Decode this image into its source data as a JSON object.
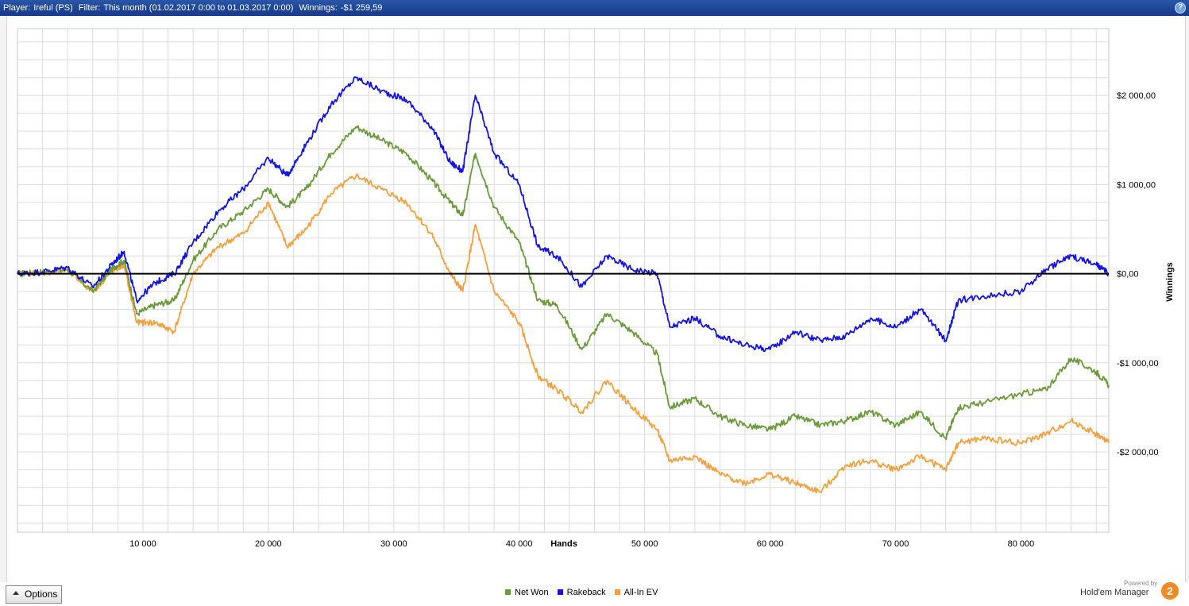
{
  "header": {
    "player_label": "Player:",
    "player_value": "Ireful (PS)",
    "filter_label": "Filter:",
    "filter_value": "This month (01.02.2017 0:00 to 01.03.2017 0:00)",
    "winnings_label": "Winnings:",
    "winnings_value": "-$1 259,59",
    "help_icon": "?"
  },
  "toolbar": {
    "options_label": "Options",
    "options_icon": "triangle-up-icon"
  },
  "brand": {
    "powered_by": "Powered by",
    "name": "Hold'em Manager",
    "logo_text": "2"
  },
  "colors": {
    "net_won": "#6a9a3a",
    "rakeback": "#1414e0",
    "all_in_ev": "#f5a040",
    "zero_line": "#000000",
    "grid": "#dcdcdc",
    "title_bar": "#1f4596"
  },
  "chart_data": {
    "type": "line",
    "xlabel": "Hands",
    "ylabel": "Winnings",
    "xlim": [
      0,
      87000
    ],
    "ylim": [
      -2900,
      2750
    ],
    "x_ticks": [
      10000,
      20000,
      30000,
      40000,
      50000,
      60000,
      70000,
      80000
    ],
    "x_tick_labels": [
      "10 000",
      "20 000",
      "30 000",
      "40 000",
      "50 000",
      "60 000",
      "70 000",
      "80 000"
    ],
    "y_ticks": [
      2000,
      1000,
      0,
      -1000,
      -2000
    ],
    "y_tick_labels": [
      "$2 000,00",
      "$1 000,00",
      "$0,00",
      "-$1 000,00",
      "-$2 000,00"
    ],
    "grid": true,
    "legend_position": "bottom-center",
    "x": [
      0,
      2000,
      4000,
      6000,
      7500,
      8500,
      9500,
      11000,
      12500,
      14000,
      16000,
      18000,
      20000,
      21500,
      23000,
      25000,
      27000,
      29000,
      31000,
      33000,
      34500,
      35500,
      36500,
      38000,
      40000,
      41500,
      43000,
      45000,
      47000,
      49000,
      51000,
      52000,
      54000,
      56000,
      58000,
      60000,
      62000,
      64000,
      66000,
      68000,
      70000,
      72000,
      74000,
      75000,
      77000,
      80000,
      82000,
      84000,
      86000,
      87000
    ],
    "series": [
      {
        "name": "Net Won",
        "values": [
          0,
          20,
          50,
          -200,
          50,
          150,
          -450,
          -350,
          -300,
          150,
          500,
          700,
          950,
          750,
          950,
          1350,
          1650,
          1500,
          1350,
          1050,
          800,
          650,
          1350,
          750,
          350,
          -300,
          -350,
          -850,
          -450,
          -650,
          -900,
          -1500,
          -1400,
          -1600,
          -1700,
          -1750,
          -1600,
          -1700,
          -1650,
          -1550,
          -1700,
          -1550,
          -1850,
          -1500,
          -1450,
          -1350,
          -1300,
          -950,
          -1100,
          -1250
        ]
      },
      {
        "name": "Rakeback",
        "values": [
          0,
          20,
          70,
          -150,
          100,
          250,
          -300,
          -100,
          0,
          350,
          700,
          950,
          1300,
          1100,
          1450,
          1900,
          2200,
          2050,
          1950,
          1650,
          1250,
          1150,
          2000,
          1350,
          1000,
          300,
          200,
          -150,
          200,
          50,
          0,
          -600,
          -500,
          -700,
          -800,
          -850,
          -650,
          -750,
          -700,
          -500,
          -600,
          -400,
          -750,
          -300,
          -250,
          -200,
          50,
          200,
          100,
          0
        ]
      },
      {
        "name": "All-In EV",
        "values": [
          0,
          10,
          30,
          -200,
          20,
          100,
          -550,
          -550,
          -650,
          0,
          300,
          450,
          800,
          300,
          500,
          900,
          1100,
          950,
          800,
          450,
          0,
          -200,
          550,
          -200,
          -550,
          -1150,
          -1300,
          -1550,
          -1200,
          -1500,
          -1750,
          -2100,
          -2050,
          -2250,
          -2350,
          -2250,
          -2350,
          -2450,
          -2150,
          -2100,
          -2200,
          -2050,
          -2200,
          -1900,
          -1850,
          -1900,
          -1800,
          -1650,
          -1800,
          -1900
        ]
      }
    ]
  }
}
